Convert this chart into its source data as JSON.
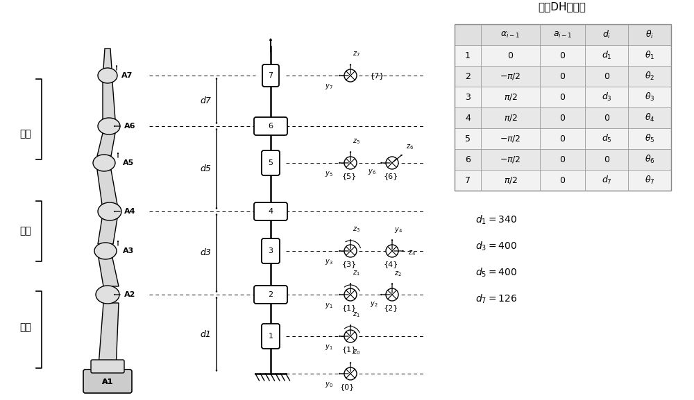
{
  "bg_color": "#ffffff",
  "dh_table_title": "修正DH参数表",
  "body_labels": [
    "腕部",
    "肘部",
    "肩部"
  ],
  "d_values_text": [
    "$d_1 = 340$",
    "$d_3 = 400$",
    "$d_5 = 400$",
    "$d_7 = 126$"
  ]
}
